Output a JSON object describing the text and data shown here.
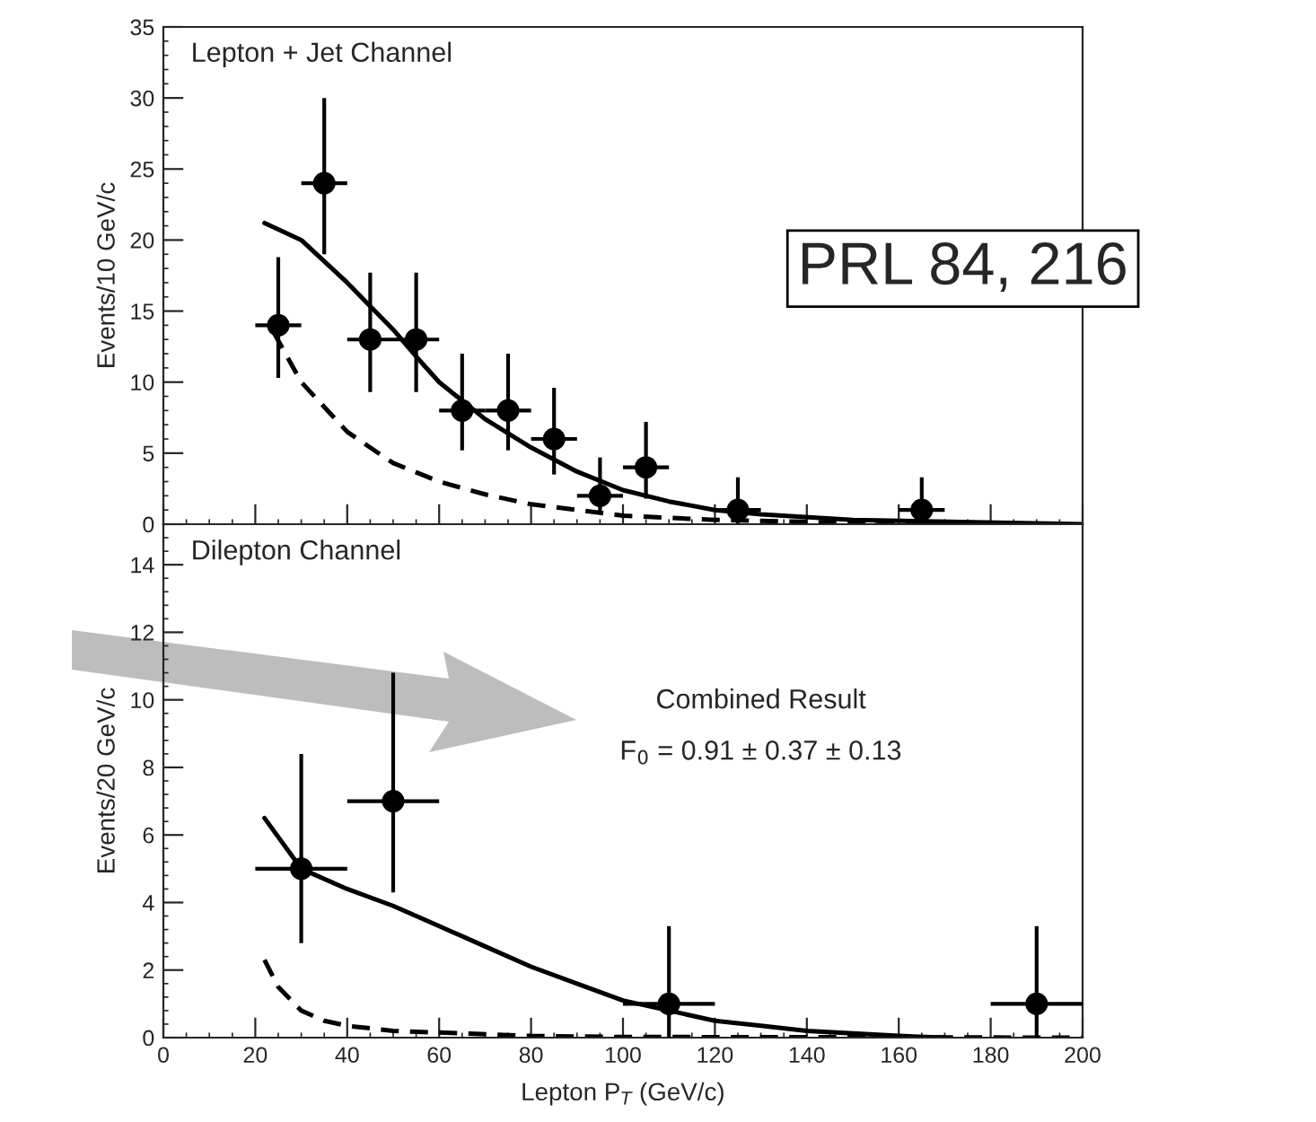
{
  "chart_data": [
    {
      "type": "scatter",
      "ylabel": "Events/10 GeV/c",
      "xlim": [
        0,
        200
      ],
      "xticks": [
        0,
        20,
        40,
        60,
        80,
        100,
        120,
        140,
        160,
        180,
        200
      ],
      "ylim": [
        0,
        35
      ],
      "yticks": [
        0,
        5,
        10,
        15,
        20,
        25,
        30,
        35
      ],
      "tick_labels": "y",
      "grid": false,
      "annotations": [
        "Lepton + Jet Channel",
        "PRL 84, 216"
      ],
      "series": [
        {
          "color": "#000000",
          "marker": "circle",
          "x": [
            25,
            35,
            45,
            55,
            65,
            75,
            85,
            95,
            105,
            125,
            165
          ],
          "values": [
            14,
            24,
            13,
            13,
            8,
            8,
            6,
            2,
            4,
            1,
            1
          ],
          "errors": [
            [
              10.3,
              18.8
            ],
            [
              19,
              30
            ],
            [
              9.3,
              17.7
            ],
            [
              9.3,
              17.7
            ],
            [
              5.2,
              12
            ],
            [
              5.2,
              12
            ],
            [
              3.5,
              9.6
            ],
            [
              0.7,
              4.7
            ],
            [
              1.8,
              7.2
            ],
            [
              0,
              3.3
            ],
            [
              0,
              3.3
            ]
          ],
          "xerrors": [
            5,
            5,
            5,
            5,
            5,
            5,
            5,
            5,
            5,
            5,
            5
          ]
        },
        {
          "type": "line",
          "color": "#000000",
          "line_style": "solid",
          "x": [
            22,
            30,
            40,
            50,
            55,
            60,
            70,
            80,
            90,
            100,
            110,
            120,
            130,
            150,
            200
          ],
          "values": [
            21.2,
            20,
            17,
            13.7,
            11.8,
            10,
            7.4,
            5.4,
            3.7,
            2.4,
            1.6,
            1.0,
            0.7,
            0.3,
            0
          ]
        },
        {
          "type": "line",
          "color": "#000000",
          "line_style": "dashed",
          "x": [
            24,
            30,
            40,
            50,
            60,
            70,
            80,
            90,
            100,
            120,
            150,
            180
          ],
          "values": [
            13.5,
            10,
            6.5,
            4.3,
            3,
            2.1,
            1.4,
            1,
            0.6,
            0.3,
            0.1,
            0
          ]
        }
      ]
    },
    {
      "type": "scatter",
      "ylabel": "Events/20 GeV/c",
      "xlabel": "Lepton P$_{T}$ (GeV/c)",
      "xlim": [
        0,
        200
      ],
      "xticks": [
        0,
        20,
        40,
        60,
        80,
        100,
        120,
        140,
        160,
        180,
        200
      ],
      "ylim": [
        0,
        15.2
      ],
      "yticks": [
        0,
        2,
        4,
        6,
        8,
        10,
        12,
        14
      ],
      "grid": false,
      "annotations": [
        "Dilepton Channel",
        "Combined Result",
        "F$_{0}$ = 0.91 ± 0.37 ± 0.13"
      ],
      "series": [
        {
          "color": "#000000",
          "marker": "circle",
          "x": [
            30,
            50,
            110,
            190
          ],
          "values": [
            5,
            7,
            1,
            1
          ],
          "errors": [
            [
              2.8,
              8.4
            ],
            [
              4.3,
              10.8
            ],
            [
              0,
              3.3
            ],
            [
              0,
              3.3
            ]
          ],
          "xerrors": [
            10,
            10,
            10,
            10
          ]
        },
        {
          "type": "line",
          "color": "#000000",
          "line_style": "solid",
          "x": [
            22,
            30,
            40,
            50,
            60,
            70,
            80,
            90,
            100,
            110,
            120,
            130,
            140,
            160,
            170
          ],
          "values": [
            6.5,
            5,
            4.4,
            3.9,
            3.3,
            2.7,
            2.1,
            1.6,
            1.1,
            0.8,
            0.5,
            0.35,
            0.2,
            0.05,
            0
          ]
        },
        {
          "type": "line",
          "color": "#000000",
          "line_style": "dashed",
          "x": [
            22,
            25,
            30,
            35,
            40,
            50,
            60,
            80,
            100,
            200
          ],
          "values": [
            2.3,
            1.5,
            0.8,
            0.5,
            0.35,
            0.2,
            0.15,
            0.05,
            0.02,
            0
          ]
        }
      ]
    }
  ]
}
